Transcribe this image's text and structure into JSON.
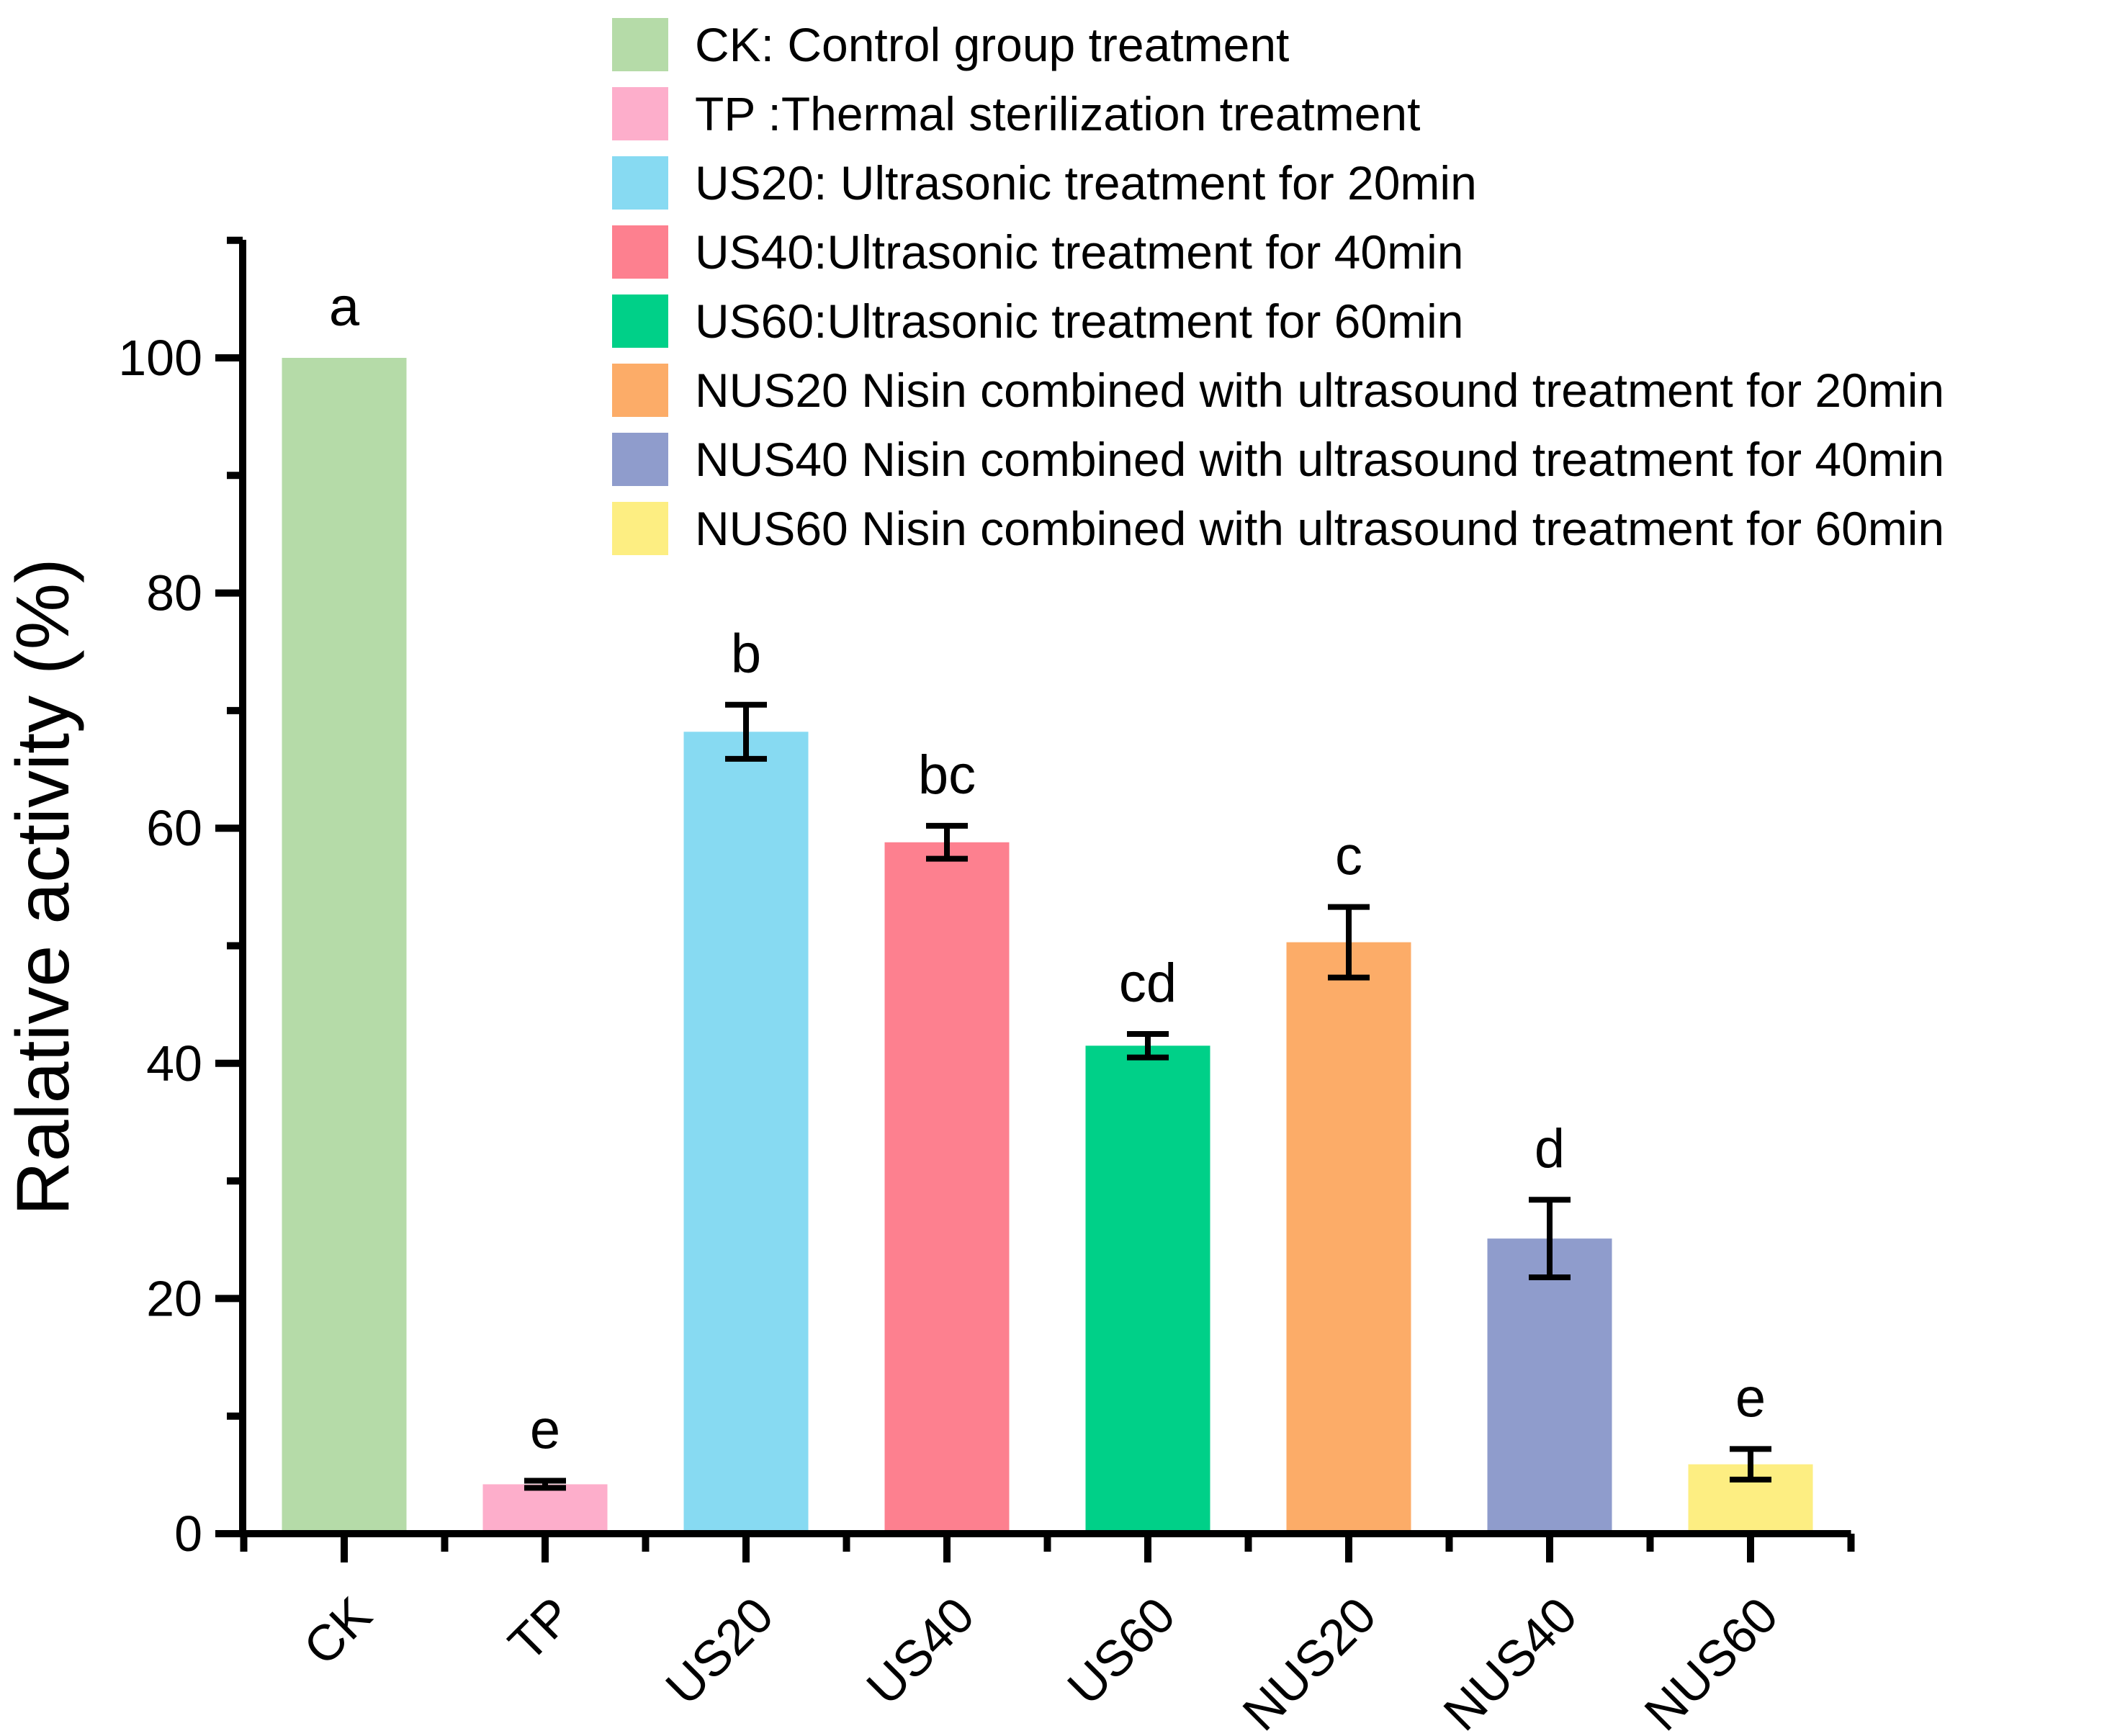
{
  "chart_data": {
    "type": "bar",
    "title": "",
    "xlabel": "",
    "ylabel": "Ralative activity (%)",
    "ylim": [
      0,
      110
    ],
    "yticks_major": [
      0,
      20,
      40,
      60,
      80,
      100
    ],
    "yticks_minor": [
      10,
      30,
      50,
      70,
      90,
      110
    ],
    "grid": false,
    "legend_position": "top-right-inside",
    "categories": [
      "CK",
      "TP",
      "US20",
      "US40",
      "US60",
      "NUS20",
      "NUS40",
      "NUS60"
    ],
    "values": [
      100.0,
      4.2,
      68.2,
      58.8,
      41.5,
      50.3,
      25.1,
      5.9
    ],
    "errors": [
      0,
      0.3,
      2.3,
      1.4,
      1.0,
      3.0,
      3.3,
      1.3
    ],
    "sig_letters": [
      "a",
      "e",
      "b",
      "bc",
      "cd",
      "c",
      "d",
      "e"
    ],
    "bar_colors": [
      "#b5dba8",
      "#fdaecb",
      "#87daf2",
      "#fd808f",
      "#00d088",
      "#fcac68",
      "#8f9ccc",
      "#fdee82"
    ],
    "axis_color": "#000000",
    "text_color": "#000000",
    "legend": [
      {
        "label": "CK: Control group treatment",
        "color": "#b5dba8"
      },
      {
        "label": "TP :Thermal sterilization treatment",
        "color": "#fdaecb"
      },
      {
        "label": "US20: Ultrasonic treatment for 20min",
        "color": "#87daf2"
      },
      {
        "label": "US40:Ultrasonic treatment for 40min",
        "color": "#fd808f"
      },
      {
        "label": "US60:Ultrasonic treatment for 60min",
        "color": "#00d088"
      },
      {
        "label": "NUS20 Nisin combined with ultrasound treatment for 20min",
        "color": "#fcac68"
      },
      {
        "label": "NUS40 Nisin combined with ultrasound treatment for 40min",
        "color": "#8f9ccc"
      },
      {
        "label": "NUS60 Nisin combined with ultrasound treatment for 60min",
        "color": "#fdee82"
      }
    ]
  }
}
